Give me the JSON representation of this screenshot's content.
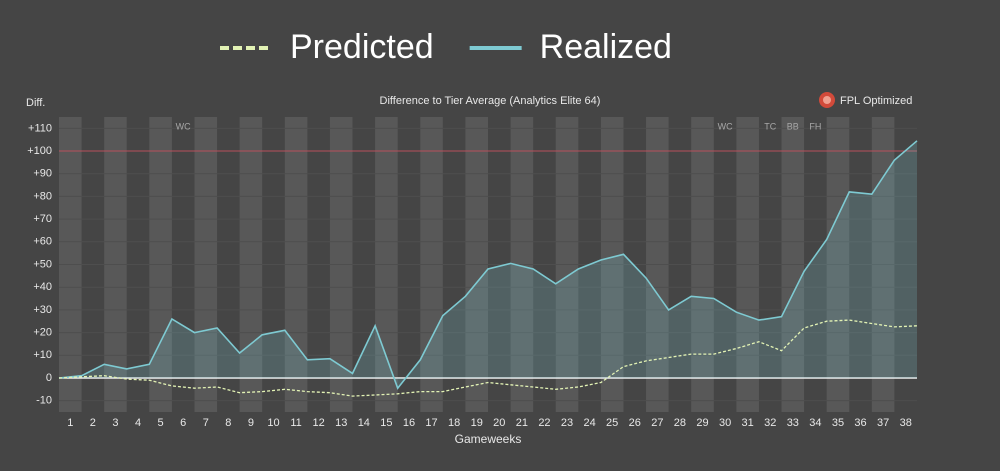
{
  "chart_data": {
    "type": "line",
    "title": "Difference to Tier Average (Analytics Elite 64)",
    "ylabel": "Diff.",
    "xlabel": "Gameweeks",
    "logo_text": "FPL Optimized",
    "x": [
      0,
      1,
      2,
      3,
      4,
      5,
      6,
      7,
      8,
      9,
      10,
      11,
      12,
      13,
      14,
      15,
      16,
      17,
      18,
      19,
      20,
      21,
      22,
      23,
      24,
      25,
      26,
      27,
      28,
      29,
      30,
      31,
      32,
      33,
      34,
      35,
      36,
      37,
      38
    ],
    "series": [
      {
        "name": "Predicted",
        "color": "#e2f2b4",
        "dash": true,
        "values": [
          0,
          0.5,
          1,
          -0.5,
          -1,
          -3.5,
          -4.5,
          -4,
          -6.5,
          -6,
          -5,
          -6,
          -6.5,
          -8,
          -7.5,
          -7,
          -6,
          -6,
          -4,
          -2,
          -3,
          -4,
          -5,
          -4,
          -2,
          5,
          7.5,
          9,
          10.5,
          10.5,
          13,
          16,
          12,
          22,
          25,
          25.5,
          24,
          22.5,
          23
        ]
      },
      {
        "name": "Realized",
        "color": "#7ecad2",
        "dash": false,
        "area": true,
        "values": [
          0,
          1,
          6,
          4,
          6,
          26,
          20,
          22,
          11,
          19,
          21,
          8,
          8.5,
          2,
          23,
          -4.5,
          8,
          27.5,
          36,
          48,
          50.5,
          48,
          41.5,
          48,
          52,
          54.5,
          44,
          30,
          36,
          35,
          29,
          25.5,
          27,
          47,
          61,
          82,
          81,
          96,
          104.5
        ]
      }
    ],
    "xlim": [
      0,
      38
    ],
    "xticks": [
      {
        "value": 0.5,
        "label": "1"
      },
      {
        "value": 1.5,
        "label": "2"
      },
      {
        "value": 2.5,
        "label": "3"
      },
      {
        "value": 3.5,
        "label": "4"
      },
      {
        "value": 4.5,
        "label": "5"
      },
      {
        "value": 5.5,
        "label": "6"
      },
      {
        "value": 6.5,
        "label": "7"
      },
      {
        "value": 7.5,
        "label": "8"
      },
      {
        "value": 8.5,
        "label": "9"
      },
      {
        "value": 9.5,
        "label": "10"
      },
      {
        "value": 10.5,
        "label": "11"
      },
      {
        "value": 11.5,
        "label": "12"
      },
      {
        "value": 12.5,
        "label": "13"
      },
      {
        "value": 13.5,
        "label": "14"
      },
      {
        "value": 14.5,
        "label": "15"
      },
      {
        "value": 15.5,
        "label": "16"
      },
      {
        "value": 16.5,
        "label": "17"
      },
      {
        "value": 17.5,
        "label": "18"
      },
      {
        "value": 18.5,
        "label": "19"
      },
      {
        "value": 19.5,
        "label": "20"
      },
      {
        "value": 20.5,
        "label": "21"
      },
      {
        "value": 21.5,
        "label": "22"
      },
      {
        "value": 22.5,
        "label": "23"
      },
      {
        "value": 23.5,
        "label": "24"
      },
      {
        "value": 24.5,
        "label": "25"
      },
      {
        "value": 25.5,
        "label": "26"
      },
      {
        "value": 26.5,
        "label": "27"
      },
      {
        "value": 27.5,
        "label": "28"
      },
      {
        "value": 28.5,
        "label": "29"
      },
      {
        "value": 29.5,
        "label": "30"
      },
      {
        "value": 30.5,
        "label": "31"
      },
      {
        "value": 31.5,
        "label": "32"
      },
      {
        "value": 32.5,
        "label": "33"
      },
      {
        "value": 33.5,
        "label": "34"
      },
      {
        "value": 34.5,
        "label": "35"
      },
      {
        "value": 35.5,
        "label": "36"
      },
      {
        "value": 36.5,
        "label": "37"
      },
      {
        "value": 37.5,
        "label": "38"
      }
    ],
    "ylim": [
      -15,
      115
    ],
    "yticks": [
      -10,
      0,
      {
        "value": 10,
        "label": "+10"
      },
      {
        "value": 20,
        "label": "+20"
      },
      {
        "value": 30,
        "label": "+30"
      },
      {
        "value": 40,
        "label": "+40"
      },
      {
        "value": 50,
        "label": "+50"
      },
      {
        "value": 60,
        "label": "+60"
      },
      {
        "value": 70,
        "label": "+70"
      },
      {
        "value": 80,
        "label": "+80"
      },
      {
        "value": 90,
        "label": "+90"
      },
      {
        "value": 100,
        "label": "+100"
      },
      {
        "value": 110,
        "label": "+110"
      }
    ],
    "reference_line": {
      "value": 100,
      "color": "#b8505c"
    },
    "annotations": [
      {
        "text": "WC",
        "x": 5.5
      },
      {
        "text": "WC",
        "x": 29.5
      },
      {
        "text": "TC",
        "x": 31.5
      },
      {
        "text": "BB",
        "x": 32.5
      },
      {
        "text": "FH",
        "x": 33.5
      }
    ]
  }
}
